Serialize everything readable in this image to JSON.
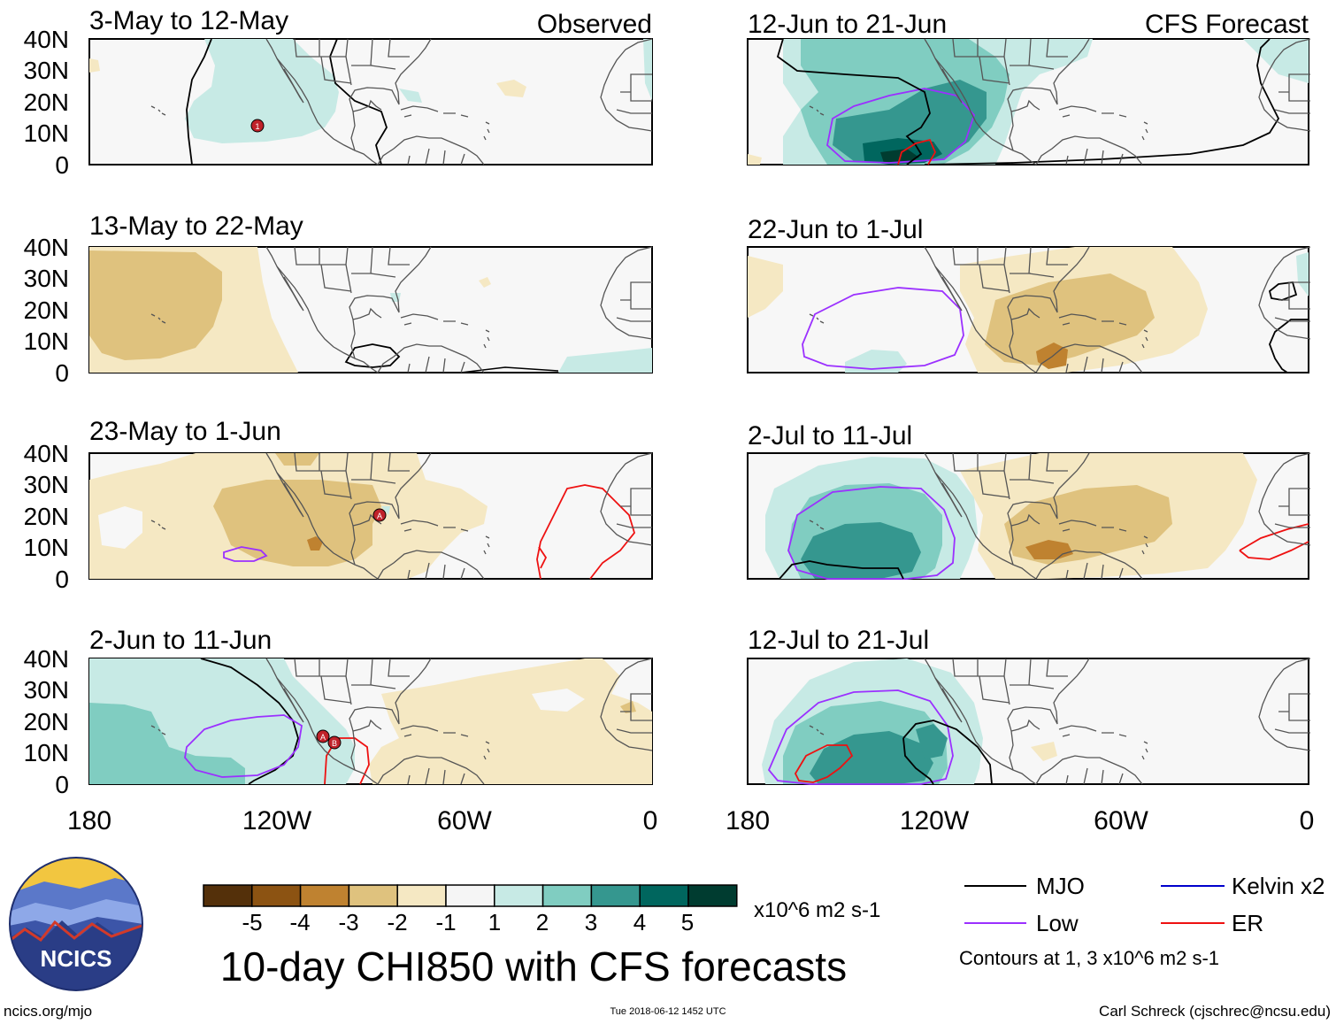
{
  "figure_title": "10-day CHI850 with CFS forecasts",
  "left_header": "Observed",
  "right_header": "CFS Forecast",
  "panels": [
    {
      "col": "left",
      "row": 0,
      "date": "3-May to 12-May"
    },
    {
      "col": "left",
      "row": 1,
      "date": "13-May to 22-May"
    },
    {
      "col": "left",
      "row": 2,
      "date": "23-May to 1-Jun"
    },
    {
      "col": "left",
      "row": 3,
      "date": "2-Jun to 11-Jun"
    },
    {
      "col": "right",
      "row": 0,
      "date": "12-Jun to 21-Jun"
    },
    {
      "col": "right",
      "row": 1,
      "date": "22-Jun to 1-Jul"
    },
    {
      "col": "right",
      "row": 2,
      "date": "2-Jul to 11-Jul"
    },
    {
      "col": "right",
      "row": 3,
      "date": "12-Jul to 21-Jul"
    }
  ],
  "lat_labels": [
    "40N",
    "30N",
    "20N",
    "10N",
    "0"
  ],
  "lon_labels": [
    "180",
    "120W",
    "60W",
    "0"
  ],
  "colorbar": {
    "colors": [
      "#54300a",
      "#8c5312",
      "#bf8230",
      "#dfc27e",
      "#f5e8c3",
      "#f5f5f5",
      "#c7eae5",
      "#80cdc1",
      "#35978f",
      "#00665e",
      "#003c30"
    ],
    "labels": [
      "-5",
      "-4",
      "-3",
      "-2",
      "-1",
      "1",
      "2",
      "3",
      "4",
      "5"
    ],
    "units": "x10^6 m2 s-1"
  },
  "legend": {
    "items": [
      {
        "label": "MJO",
        "color": "#000000"
      },
      {
        "label": "Kelvin x2",
        "color": "#0000cc"
      },
      {
        "label": "Low",
        "color": "#9b30ff"
      },
      {
        "label": "ER",
        "color": "#ee1111"
      }
    ],
    "note": "Contours at 1, 3 x10^6 m2 s-1"
  },
  "logo_text": "NCICS",
  "footer": {
    "left": "ncics.org/mjo",
    "center": "Tue 2018-06-12 1452 UTC",
    "right": "Carl Schreck (cjschrec@ncsu.edu)"
  },
  "storm_markers": [
    "1",
    "A",
    "A",
    "B"
  ]
}
